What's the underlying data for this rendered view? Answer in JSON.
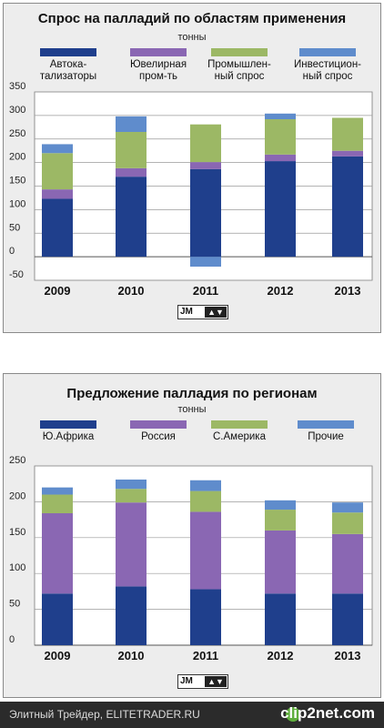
{
  "chart_data": [
    {
      "type": "bar",
      "stacked": true,
      "title": "Спрос на палладий по областям применения",
      "units": "тонны",
      "categories": [
        "2009",
        "2010",
        "2011",
        "2012",
        "2013"
      ],
      "series": [
        {
          "name": "Автока-\nтализаторы",
          "color": "#1f3f8c",
          "values": [
            123,
            170,
            186,
            203,
            213
          ]
        },
        {
          "name": "Ювелирная\nпром-ть",
          "color": "#8a67b3",
          "values": [
            20,
            18,
            15,
            14,
            12
          ]
        },
        {
          "name": "Промышлен-\nный спрос",
          "color": "#9cb865",
          "values": [
            77,
            77,
            80,
            75,
            70
          ]
        },
        {
          "name": "Инвестицион-\nный спрос",
          "color": "#5f8ccc",
          "values": [
            19,
            33,
            -21,
            12,
            0
          ]
        }
      ],
      "ylim": [
        -50,
        350
      ],
      "yticks": [
        "-50",
        "0",
        "50",
        "100",
        "150",
        "200",
        "250",
        "300",
        "350"
      ],
      "ytick_values": [
        -50,
        0,
        50,
        100,
        150,
        200,
        250,
        300,
        350
      ],
      "grid": true,
      "legend": "top"
    },
    {
      "type": "bar",
      "stacked": true,
      "title": "Предложение палладия по регионам",
      "units": "тонны",
      "categories": [
        "2009",
        "2010",
        "2011",
        "2012",
        "2013"
      ],
      "series": [
        {
          "name": "Ю.Африка",
          "color": "#1f3f8c",
          "values": [
            72,
            82,
            78,
            72,
            72
          ]
        },
        {
          "name": "Россия",
          "color": "#8a67b3",
          "values": [
            112,
            117,
            108,
            88,
            83
          ]
        },
        {
          "name": "С.Америка",
          "color": "#9cb865",
          "values": [
            26,
            19,
            29,
            29,
            30
          ]
        },
        {
          "name": "Прочие",
          "color": "#5f8ccc",
          "values": [
            10,
            13,
            15,
            13,
            14
          ]
        }
      ],
      "ylim": [
        0,
        250
      ],
      "yticks": [
        "0",
        "50",
        "100",
        "150",
        "200",
        "250"
      ],
      "ytick_values": [
        0,
        50,
        100,
        150,
        200,
        250
      ],
      "grid": true,
      "legend": "top"
    }
  ],
  "logo": {
    "text": "JM"
  },
  "footer": {
    "text": "Элитный Трейдер, ELITETRADER.RU",
    "brand": "clip2net.com"
  }
}
